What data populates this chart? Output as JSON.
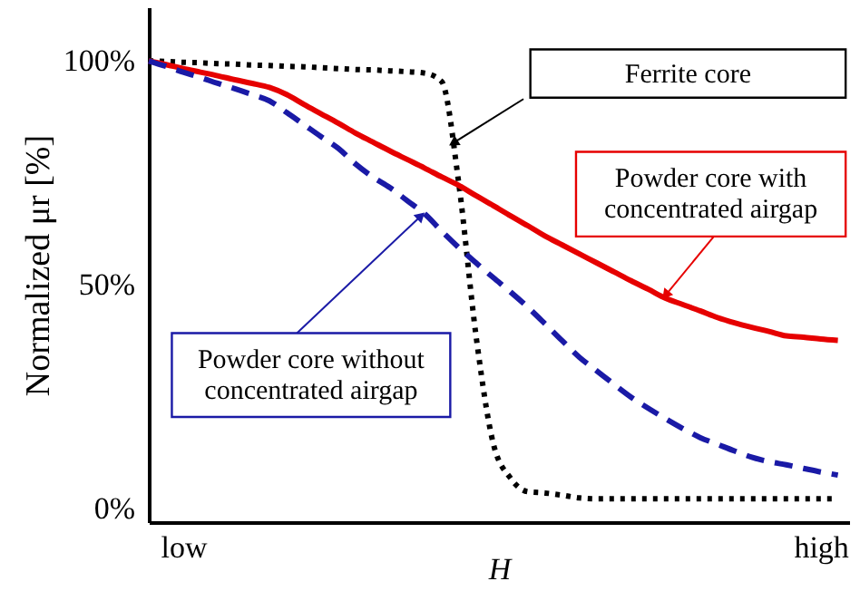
{
  "chart_data": {
    "type": "line",
    "xlabel": "H",
    "ylabel": "Normalized μr [%]",
    "categories": [
      null,
      null,
      "low",
      null,
      null,
      null,
      null,
      null,
      null,
      null,
      null,
      null,
      null,
      null,
      null,
      null,
      null,
      null,
      null,
      null,
      null,
      null,
      null,
      null,
      null,
      null,
      null,
      null,
      null,
      null,
      null,
      null,
      null,
      null,
      null,
      null,
      null,
      null,
      null,
      "high",
      null
    ],
    "ylim": [
      -3,
      112
    ],
    "yticks": [
      {
        "value": 0,
        "label": "0%"
      },
      {
        "value": 50,
        "label": "50%"
      },
      {
        "value": 100,
        "label": "100%"
      }
    ],
    "grid": false,
    "series": [
      {
        "color": "#000000",
        "line_style": "dotted",
        "values": [
          100,
          99.9,
          99.7,
          99.6,
          99.4,
          99.3,
          99.1,
          99.0,
          98.8,
          98.7,
          98.5,
          98.3,
          98.1,
          98.0,
          97.8,
          97.6,
          97.3,
          95.4,
          72.5,
          38.5,
          14.5,
          6.8,
          3.8,
          3.5,
          3.0,
          2.4,
          2.2,
          2.2,
          2.2,
          2.2,
          2.2,
          2.2,
          2.2,
          2.2,
          2.2,
          2.2,
          2.2,
          2.2,
          2.2,
          2.2,
          2.2
        ]
      },
      {
        "name": "Powder core with\nconcentrated airgap",
        "color": "#e60000",
        "line_style": "solid",
        "values": [
          100,
          99.2,
          98.3,
          97.5,
          96.7,
          95.8,
          95.0,
          94.1,
          92.5,
          90.3,
          88.2,
          86.1,
          83.9,
          81.9,
          79.9,
          78.0,
          76.1,
          74.1,
          72.2,
          69.9,
          67.7,
          65.4,
          63.2,
          60.9,
          58.9,
          56.9,
          54.9,
          52.9,
          50.9,
          49.0,
          47.0,
          45.6,
          44.2,
          42.7,
          41.5,
          40.5,
          39.6,
          38.6,
          38.3,
          37.9,
          37.6
        ]
      },
      {
        "name": "Powder core without\nconcentrated airgap",
        "color": "#1a1aa6",
        "line_style": "dashed",
        "values": [
          100,
          98.8,
          97.5,
          96.3,
          95.0,
          93.8,
          92.5,
          91.1,
          88.5,
          85.8,
          83.1,
          80.5,
          77.0,
          74.1,
          71.7,
          68.8,
          65.9,
          62.0,
          58.3,
          54.9,
          51.6,
          48.4,
          45.0,
          41.3,
          37.5,
          33.8,
          30.8,
          27.8,
          24.9,
          22.4,
          20.1,
          17.9,
          15.9,
          14.4,
          12.9,
          11.5,
          10.5,
          9.8,
          9.0,
          8.2,
          7.5
        ]
      }
    ],
    "annotations": [
      "Ferrite core"
    ],
    "legend": false
  }
}
